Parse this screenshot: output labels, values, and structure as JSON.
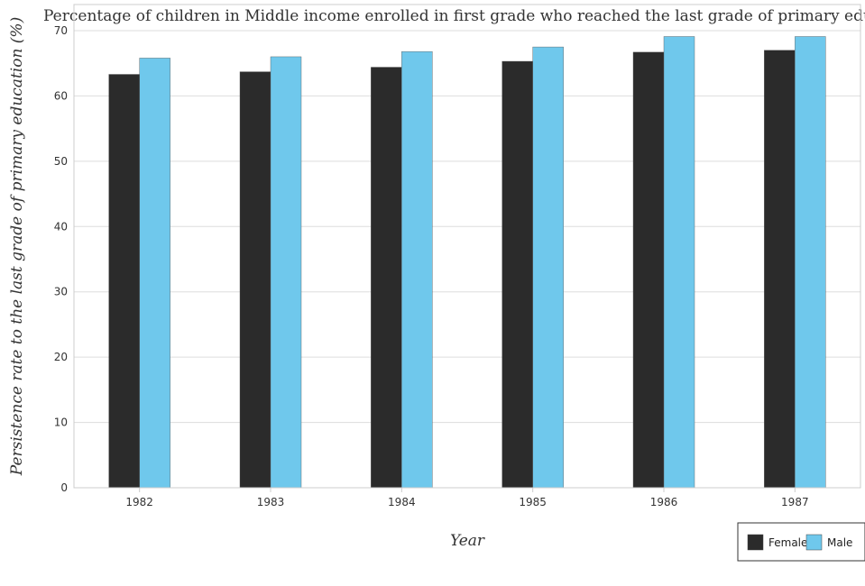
{
  "chart_data": {
    "type": "bar",
    "title": "Percentage of children in Middle income enrolled in first grade who reached the last grade of primary education",
    "xlabel": "Year",
    "ylabel": "Persistence rate to the last grade of primary education (%)",
    "categories": [
      "1982",
      "1983",
      "1984",
      "1985",
      "1986",
      "1987"
    ],
    "series": [
      {
        "name": "Female",
        "color": "#2b2b2b",
        "values": [
          63.3,
          63.7,
          64.4,
          65.3,
          66.7,
          67.0
        ]
      },
      {
        "name": "Male",
        "color": "#6fc8ec",
        "values": [
          65.8,
          66.0,
          66.8,
          67.5,
          69.1,
          69.1
        ]
      }
    ],
    "ylim": [
      0,
      74
    ],
    "yticks": [
      0,
      10,
      20,
      30,
      40,
      50,
      60,
      70
    ],
    "grid": true,
    "legend_position": "bottom-right"
  }
}
